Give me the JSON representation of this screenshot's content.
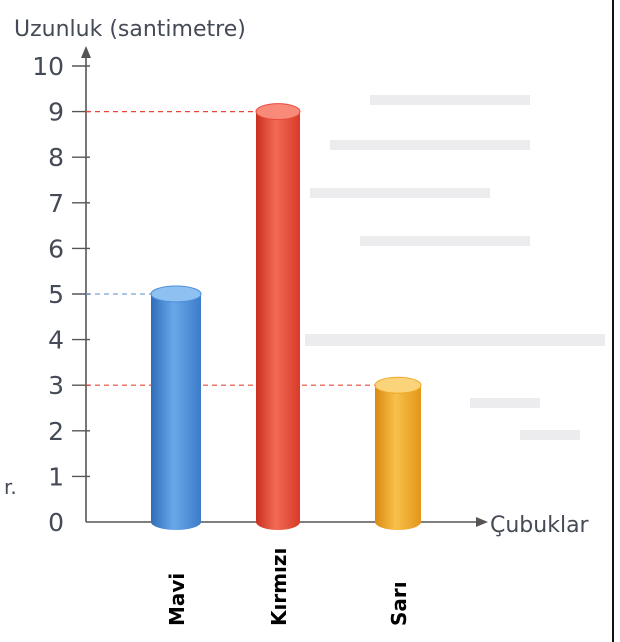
{
  "chart_data": {
    "type": "bar",
    "title": "",
    "ylabel": "Uzunluk (santimetre)",
    "xlabel": "Çubuklar",
    "categories": [
      "Mavi",
      "Kırmızı",
      "Sarı"
    ],
    "values": [
      5,
      9,
      3
    ],
    "ylim": [
      0,
      10
    ],
    "yticks": [
      0,
      1,
      2,
      3,
      4,
      5,
      6,
      7,
      8,
      9,
      10
    ],
    "colors": [
      "#4a90d9",
      "#e84a3c",
      "#f2a82a"
    ],
    "grid": false
  }
}
